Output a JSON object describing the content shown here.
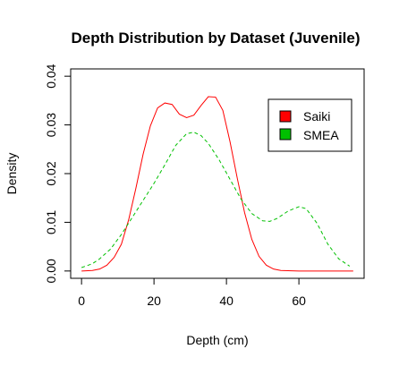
{
  "chart_data": {
    "type": "line",
    "title": "Depth Distribution by Dataset (Juvenile)",
    "xlabel": "Depth (cm)",
    "ylabel": "Density",
    "xlim": [
      -3,
      78
    ],
    "ylim": [
      -0.0015,
      0.0415
    ],
    "xticks": [
      0,
      20,
      40,
      60
    ],
    "yticks": [
      0.0,
      0.01,
      0.02,
      0.03,
      0.04
    ],
    "ytick_labels": [
      "0.00",
      "0.01",
      "0.02",
      "0.03",
      "0.04"
    ],
    "xtick_labels": [
      "0",
      "20",
      "40",
      "60"
    ],
    "grid": false,
    "legend_position": "top-right",
    "series": [
      {
        "name": "Saiki",
        "color": "#ff0000",
        "line_style": "solid",
        "x": [
          0,
          3,
          5,
          7,
          9,
          11,
          13,
          15,
          17,
          19,
          21,
          23,
          25,
          27,
          29,
          31,
          33,
          35,
          37,
          39,
          41,
          43,
          45,
          47,
          49,
          51,
          53,
          55,
          60,
          65,
          70,
          75
        ],
        "y": [
          0.0,
          0.0001,
          0.0004,
          0.0012,
          0.0028,
          0.0055,
          0.0105,
          0.017,
          0.024,
          0.0298,
          0.0335,
          0.0345,
          0.0342,
          0.0322,
          0.0315,
          0.032,
          0.034,
          0.0358,
          0.0357,
          0.033,
          0.0265,
          0.019,
          0.012,
          0.0065,
          0.003,
          0.0012,
          0.0004,
          0.0001,
          0.0,
          0.0,
          0.0,
          0.0
        ]
      },
      {
        "name": "SMEA",
        "color": "#00c000",
        "line_style": "dashed",
        "x": [
          0,
          3,
          5,
          8,
          11,
          14,
          17,
          20,
          23,
          26,
          29,
          31,
          33,
          35,
          38,
          41,
          44,
          47,
          50,
          52,
          54,
          57,
          60,
          62,
          65,
          68,
          71,
          74
        ],
        "y": [
          0.0007,
          0.0015,
          0.0025,
          0.0045,
          0.0075,
          0.011,
          0.0145,
          0.018,
          0.0218,
          0.0258,
          0.0282,
          0.0285,
          0.0278,
          0.0262,
          0.0228,
          0.0188,
          0.0148,
          0.0118,
          0.0103,
          0.0102,
          0.0108,
          0.0123,
          0.0132,
          0.0128,
          0.0098,
          0.0055,
          0.0025,
          0.001
        ]
      }
    ]
  }
}
